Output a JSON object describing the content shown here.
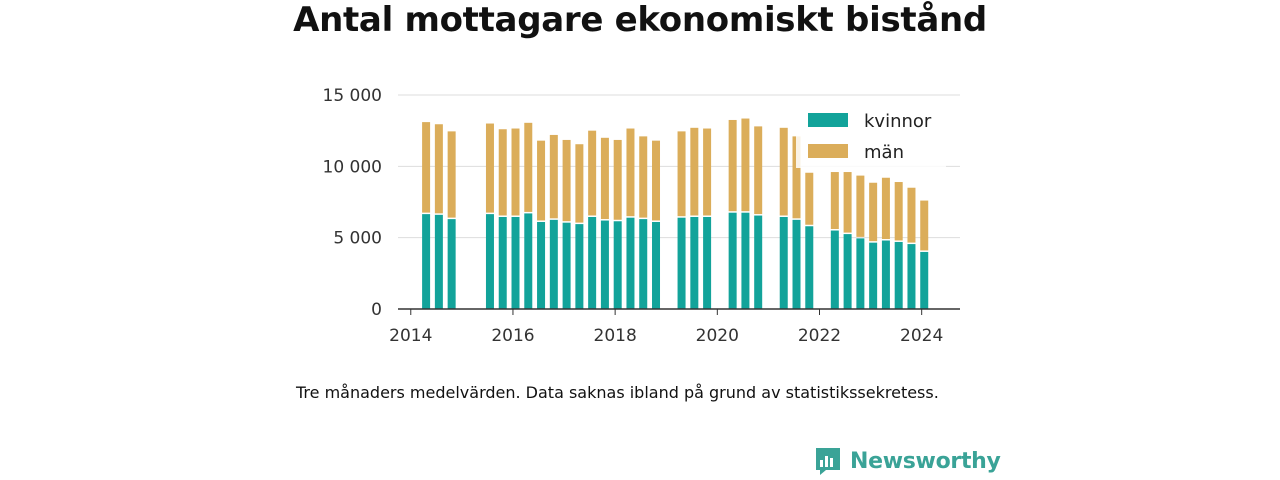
{
  "title": "Antal mottagare ekonomiskt bistånd",
  "caption": "Tre månaders medelvärden. Data saknas ibland på grund av statistikssekretess.",
  "brand": {
    "name": "Newsworthy",
    "logo_icon": "bar-chart-speech-bubble-icon"
  },
  "colors": {
    "kvinnor": "#12a39a",
    "man": "#dbad5a",
    "grid": "#dddddd",
    "axis": "#333333"
  },
  "chart_data": {
    "type": "bar",
    "stacked": true,
    "x_ticks": [
      "2014",
      "2016",
      "2018",
      "2020",
      "2022",
      "2024"
    ],
    "y_ticks": [
      "0",
      "5 000",
      "10 000",
      "15 000"
    ],
    "ylim": [
      0,
      15000
    ],
    "grid": true,
    "legend_position": "top-right",
    "series": [
      {
        "name": "kvinnor",
        "values": [
          6650,
          6600,
          6300,
          6650,
          6450,
          6450,
          6700,
          6100,
          6250,
          6050,
          5950,
          6450,
          6200,
          6150,
          6400,
          6300,
          6100,
          6400,
          6450,
          6450,
          6750,
          6750,
          6550,
          6450,
          6250,
          5800,
          5500,
          5250,
          4950,
          4650,
          4800,
          4700,
          4550,
          4000
        ]
      },
      {
        "name": "män",
        "values": [
          6450,
          6350,
          6150,
          6350,
          6150,
          6200,
          6350,
          5700,
          5950,
          5800,
          5600,
          6050,
          5800,
          5700,
          6250,
          5800,
          5700,
          6050,
          6250,
          6200,
          6500,
          6600,
          6250,
          6250,
          5850,
          3750,
          4100,
          4350,
          4400,
          4200,
          4400,
          4200,
          3950,
          3600
        ]
      }
    ],
    "x": [
      2014.3,
      2014.55,
      2014.8,
      2015.55,
      2015.8,
      2016.05,
      2016.3,
      2016.55,
      2016.8,
      2017.05,
      2017.3,
      2017.55,
      2017.8,
      2018.05,
      2018.3,
      2018.55,
      2018.8,
      2019.3,
      2019.55,
      2019.8,
      2020.3,
      2020.55,
      2020.8,
      2021.3,
      2021.55,
      2021.8,
      2022.3,
      2022.55,
      2022.8,
      2023.05,
      2023.3,
      2023.55,
      2023.8,
      2024.05
    ]
  }
}
